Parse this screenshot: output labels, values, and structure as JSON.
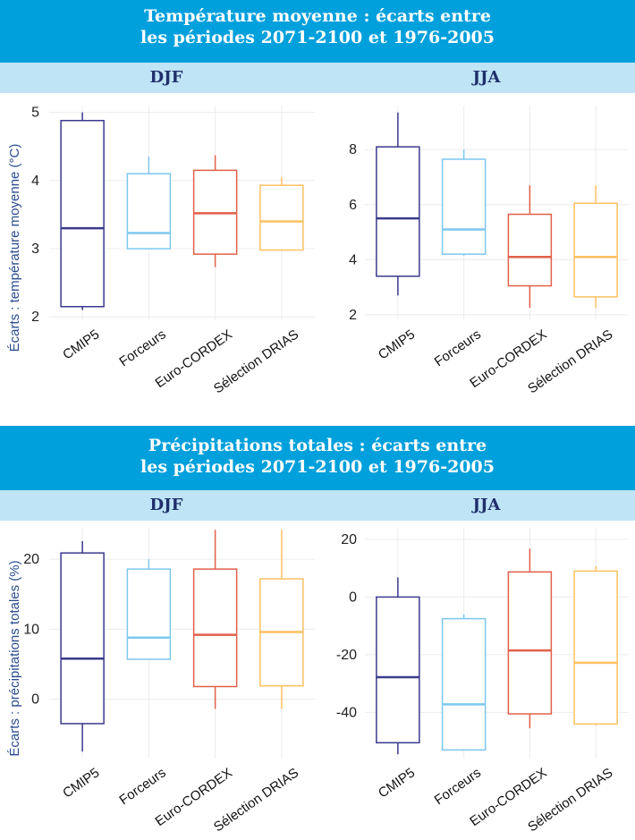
{
  "panels": [
    {
      "title_line1": "Température moyenne : écarts entre",
      "title_line2": "les périodes 2071-2100 et 1976-2005",
      "ylabel": "Écarts : température moyenne (°C)",
      "seasons": [
        "DJF",
        "JJA"
      ]
    },
    {
      "title_line1": "Précipitations totales : écarts entre",
      "title_line2": "les périodes 2071-2100 et 1976-2005",
      "ylabel": "Écarts : précipitations totales (%)",
      "seasons": [
        "DJF",
        "JJA"
      ]
    }
  ],
  "series_colors": {
    "CMIP5": "#3a3a8c",
    "Forceurs": "#7cc8ef",
    "Euro-CORDEX": "#e0604a",
    "Sélection DRIAS": "#fcc060"
  },
  "chart_data": [
    {
      "type": "box",
      "panel": "Température moyenne",
      "season": "DJF",
      "categories": [
        "CMIP5",
        "Forceurs",
        "Euro-CORDEX",
        "Sélection DRIAS"
      ],
      "ylim": [
        1.95,
        5.1
      ],
      "yticks": [
        2,
        3,
        4,
        5
      ],
      "boxes": [
        {
          "name": "CMIP5",
          "whisker_low": 2.1,
          "q1": 2.15,
          "median": 3.3,
          "q3": 4.88,
          "whisker_high": 5.0
        },
        {
          "name": "Forceurs",
          "whisker_low": 3.0,
          "q1": 3.0,
          "median": 3.23,
          "q3": 4.1,
          "whisker_high": 4.35
        },
        {
          "name": "Euro-CORDEX",
          "whisker_low": 2.73,
          "q1": 2.92,
          "median": 3.52,
          "q3": 4.15,
          "whisker_high": 4.37
        },
        {
          "name": "Sélection DRIAS",
          "whisker_low": 2.98,
          "q1": 2.98,
          "median": 3.4,
          "q3": 3.93,
          "whisker_high": 4.05
        }
      ]
    },
    {
      "type": "box",
      "panel": "Température moyenne",
      "season": "JJA",
      "categories": [
        "CMIP5",
        "Forceurs",
        "Euro-CORDEX",
        "Sélection DRIAS"
      ],
      "ylim": [
        1.8,
        9.6
      ],
      "yticks": [
        2,
        4,
        6,
        8
      ],
      "boxes": [
        {
          "name": "CMIP5",
          "whisker_low": 2.7,
          "q1": 3.4,
          "median": 5.5,
          "q3": 8.1,
          "whisker_high": 9.35
        },
        {
          "name": "Forceurs",
          "whisker_low": 4.15,
          "q1": 4.2,
          "median": 5.1,
          "q3": 7.65,
          "whisker_high": 8.0
        },
        {
          "name": "Euro-CORDEX",
          "whisker_low": 2.25,
          "q1": 3.05,
          "median": 4.1,
          "q3": 5.65,
          "whisker_high": 6.7
        },
        {
          "name": "Sélection DRIAS",
          "whisker_low": 2.25,
          "q1": 2.65,
          "median": 4.1,
          "q3": 6.05,
          "whisker_high": 6.7
        }
      ]
    },
    {
      "type": "box",
      "panel": "Précipitations totales",
      "season": "DJF",
      "categories": [
        "CMIP5",
        "Forceurs",
        "Euro-CORDEX",
        "Sélection DRIAS"
      ],
      "ylim": [
        -8.5,
        24.5
      ],
      "yticks": [
        0,
        10,
        20
      ],
      "boxes": [
        {
          "name": "CMIP5",
          "whisker_low": -7.5,
          "q1": -3.5,
          "median": 5.8,
          "q3": 20.9,
          "whisker_high": 22.6
        },
        {
          "name": "Forceurs",
          "whisker_low": 5.7,
          "q1": 5.7,
          "median": 8.8,
          "q3": 18.6,
          "whisker_high": 20.0
        },
        {
          "name": "Euro-CORDEX",
          "whisker_low": -1.4,
          "q1": 1.8,
          "median": 9.2,
          "q3": 18.6,
          "whisker_high": 24.2
        },
        {
          "name": "Sélection DRIAS",
          "whisker_low": -1.4,
          "q1": 1.9,
          "median": 9.6,
          "q3": 17.2,
          "whisker_high": 24.2
        }
      ]
    },
    {
      "type": "box",
      "panel": "Précipitations totales",
      "season": "JJA",
      "categories": [
        "CMIP5",
        "Forceurs",
        "Euro-CORDEX",
        "Sélection DRIAS"
      ],
      "ylim": [
        -56,
        24
      ],
      "yticks": [
        -40,
        -20,
        0,
        20
      ],
      "boxes": [
        {
          "name": "CMIP5",
          "whisker_low": -54.5,
          "q1": -50.5,
          "median": -27.8,
          "q3": 0.0,
          "whisker_high": 6.8
        },
        {
          "name": "Forceurs",
          "whisker_low": -53.0,
          "q1": -53.0,
          "median": -37.2,
          "q3": -7.5,
          "whisker_high": -6.0
        },
        {
          "name": "Euro-CORDEX",
          "whisker_low": -45.5,
          "q1": -40.5,
          "median": -18.5,
          "q3": 8.7,
          "whisker_high": 16.8
        },
        {
          "name": "Sélection DRIAS",
          "whisker_low": -44.5,
          "q1": -44.0,
          "median": -22.8,
          "q3": 9.0,
          "whisker_high": 10.8
        }
      ]
    }
  ]
}
